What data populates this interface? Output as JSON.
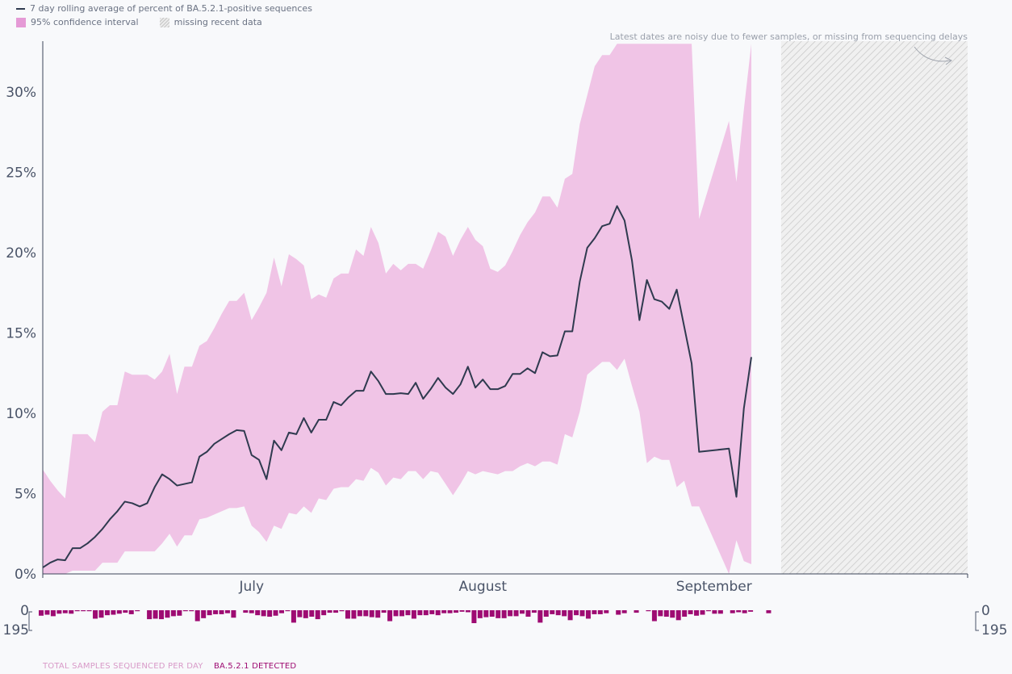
{
  "legend": {
    "line_label": "7 day rolling average of percent of BA.5.2.1-positive sequences",
    "ci_label": "95% confidence interval",
    "missing_label": "missing recent data"
  },
  "annotation": "Latest dates are noisy due to fewer samples, or missing from sequencing delays",
  "bottom_legend": {
    "total_label": "TOTAL SAMPLES SEQUENCED PER DAY",
    "detected_label": "BA.5.2.1 DETECTED"
  },
  "colors": {
    "line": "#2f3a4f",
    "ci_fill": "#f0c4e6",
    "bar_total": "#d6a7cc",
    "bar_detected": "#9e0b72",
    "missing_hatch": "#c8c8c8"
  },
  "chart_data": {
    "type": "line",
    "x_start": "2022-06-03",
    "x_ticks": [
      "July",
      "August",
      "September"
    ],
    "y_ticks": [
      "0%",
      "5%",
      "10%",
      "15%",
      "20%",
      "25%",
      "30%"
    ],
    "ylim": [
      0,
      33
    ],
    "missing_data_from": "2022-09-10",
    "grid": false,
    "series": [
      {
        "name": "7 day rolling average of percent of BA.5.2.1-positive sequences",
        "values": [
          0.4,
          0.7,
          0.9,
          0.85,
          1.6,
          1.6,
          1.9,
          2.3,
          2.8,
          3.4,
          3.9,
          4.5,
          4.4,
          4.2,
          4.4,
          5.4,
          6.2,
          5.9,
          5.5,
          5.6,
          5.7,
          7.3,
          7.6,
          8.1,
          8.4,
          8.7,
          8.95,
          8.9,
          7.4,
          7.1,
          5.9,
          8.3,
          7.7,
          8.8,
          8.7,
          9.7,
          8.8,
          9.6,
          9.6,
          10.7,
          10.5,
          11.0,
          11.4,
          11.4,
          12.6,
          12.0,
          11.2,
          11.2,
          11.25,
          11.2,
          11.9,
          10.9,
          11.5,
          12.2,
          11.6,
          11.2,
          11.8,
          12.9,
          11.6,
          12.1,
          11.5,
          11.5,
          11.7,
          12.45,
          12.45,
          12.8,
          12.5,
          13.8,
          13.55,
          13.6,
          15.1,
          15.1,
          18.2,
          20.3,
          20.9,
          21.65,
          21.8,
          22.9,
          22.0,
          19.5,
          15.8,
          18.3,
          17.1,
          16.95,
          16.5,
          17.7,
          15.4,
          13.1,
          7.6,
          null,
          null,
          null,
          7.8,
          4.8,
          10.3,
          13.5
        ],
        "ci_upper": [
          6.5,
          5.8,
          5.2,
          4.7,
          8.7,
          8.7,
          8.7,
          8.2,
          10.1,
          10.5,
          10.5,
          12.6,
          12.4,
          12.4,
          12.4,
          12.1,
          12.6,
          13.7,
          11.2,
          12.9,
          12.9,
          14.2,
          14.5,
          15.3,
          16.2,
          17.0,
          17.0,
          17.5,
          15.8,
          16.6,
          17.5,
          19.7,
          17.9,
          19.9,
          19.6,
          19.2,
          17.1,
          17.4,
          17.2,
          18.4,
          18.7,
          18.7,
          20.2,
          19.8,
          21.6,
          20.6,
          18.7,
          19.3,
          18.9,
          19.3,
          19.3,
          19.0,
          20.1,
          21.3,
          21.0,
          19.8,
          20.8,
          21.6,
          20.8,
          20.4,
          19.0,
          18.8,
          19.2,
          20.1,
          21.1,
          21.9,
          22.5,
          23.5,
          23.5,
          22.8,
          24.6,
          24.9,
          28.0,
          29.8,
          31.6,
          32.3,
          32.3,
          33.0,
          33.0,
          33.0,
          33.0,
          33.0,
          33.0,
          33.0,
          33.0,
          33.0,
          33.0,
          33.0,
          22.1,
          null,
          null,
          null,
          28.2,
          24.4,
          28.9,
          33.0
        ],
        "ci_lower": [
          0,
          0,
          0,
          0,
          0.2,
          0.2,
          0.2,
          0.2,
          0.7,
          0.7,
          0.7,
          1.4,
          1.4,
          1.4,
          1.4,
          1.4,
          1.9,
          2.5,
          1.7,
          2.4,
          2.4,
          3.4,
          3.5,
          3.7,
          3.9,
          4.1,
          4.1,
          4.2,
          3.0,
          2.6,
          2.0,
          3.0,
          2.8,
          3.8,
          3.7,
          4.2,
          3.8,
          4.7,
          4.6,
          5.3,
          5.4,
          5.4,
          5.9,
          5.8,
          6.6,
          6.3,
          5.5,
          6.0,
          5.9,
          6.4,
          6.4,
          5.9,
          6.4,
          6.3,
          5.6,
          4.9,
          5.6,
          6.4,
          6.2,
          6.4,
          6.3,
          6.2,
          6.4,
          6.4,
          6.7,
          6.9,
          6.7,
          7.0,
          7.0,
          6.8,
          8.7,
          8.5,
          10.1,
          12.4,
          12.8,
          13.2,
          13.2,
          12.7,
          13.4,
          11.7,
          10.1,
          6.9,
          7.3,
          7.1,
          7.1,
          5.4,
          5.8,
          4.2,
          4.2,
          0.6,
          null,
          null,
          null,
          2.1,
          0.8,
          0.6,
          3.8
        ]
      }
    ],
    "bars": {
      "ylim": [
        0,
        195
      ],
      "y_ticks": [
        "0",
        "195"
      ],
      "detected": [
        55,
        45,
        60,
        35,
        30,
        35,
        8,
        5,
        8,
        85,
        75,
        50,
        45,
        35,
        25,
        40,
        5,
        0,
        90,
        85,
        90,
        75,
        60,
        55,
        6,
        5,
        110,
        80,
        50,
        40,
        40,
        30,
        75,
        0,
        25,
        30,
        50,
        60,
        65,
        55,
        30,
        5,
        125,
        70,
        80,
        65,
        90,
        50,
        25,
        25,
        10,
        85,
        85,
        60,
        60,
        70,
        75,
        25,
        110,
        60,
        60,
        50,
        85,
        50,
        50,
        40,
        50,
        30,
        30,
        25,
        15,
        20,
        130,
        80,
        70,
        65,
        80,
        80,
        60,
        60,
        35,
        65,
        25,
        125,
        65,
        40,
        50,
        60,
        100,
        50,
        60,
        85,
        40,
        40,
        30,
        0,
        45,
        30,
        0,
        25,
        0,
        5,
        110,
        60,
        65,
        75,
        100,
        65,
        40,
        55,
        45,
        5,
        35,
        35,
        0,
        30,
        20,
        30,
        15,
        0,
        0,
        30,
        0,
        0,
        0,
        30,
        0,
        0,
        30,
        40,
        0,
        0,
        0,
        15,
        20,
        10,
        0,
        60,
        5,
        0,
        0,
        5,
        0,
        0,
        0
      ],
      "total": [
        55,
        45,
        60,
        35,
        30,
        35,
        8,
        5,
        8,
        85,
        75,
        50,
        45,
        35,
        25,
        40,
        5,
        0,
        90,
        85,
        90,
        75,
        60,
        55,
        6,
        5,
        110,
        80,
        50,
        40,
        40,
        30,
        75,
        0,
        25,
        30,
        50,
        60,
        65,
        55,
        30,
        5,
        125,
        70,
        80,
        65,
        90,
        50,
        25,
        25,
        10,
        85,
        85,
        60,
        60,
        70,
        75,
        25,
        110,
        60,
        60,
        50,
        85,
        50,
        50,
        40,
        50,
        30,
        30,
        25,
        15,
        20,
        130,
        80,
        70,
        65,
        80,
        80,
        60,
        60,
        35,
        65,
        25,
        125,
        65,
        40,
        50,
        60,
        100,
        50,
        60,
        85,
        40,
        40,
        30,
        0,
        45,
        30,
        0,
        25,
        0,
        5,
        110,
        60,
        65,
        75,
        100,
        65,
        40,
        55,
        45,
        5,
        35,
        35,
        0,
        30,
        20,
        30,
        15,
        0,
        0,
        30,
        0,
        0,
        0,
        30,
        0,
        0,
        30,
        40,
        0,
        0,
        0,
        15,
        20,
        10,
        0,
        60,
        5,
        0,
        0,
        5,
        0,
        0,
        0
      ]
    }
  }
}
